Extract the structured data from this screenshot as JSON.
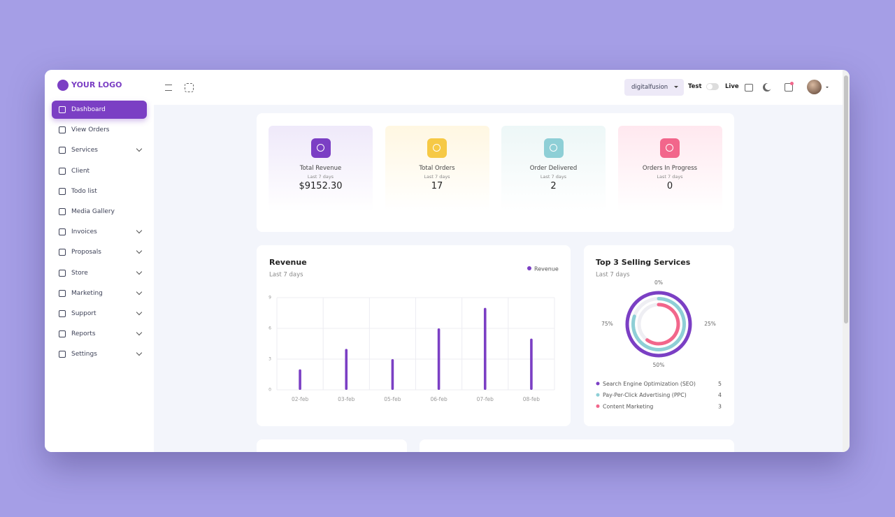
{
  "logo": "YOUR LOGO",
  "nav": [
    {
      "label": "Dashboard",
      "active": true
    },
    {
      "label": "View Orders"
    },
    {
      "label": "Services",
      "submenu": true
    },
    {
      "label": "Client"
    },
    {
      "label": "Todo list"
    },
    {
      "label": "Media Gallery"
    },
    {
      "label": "Invoices",
      "submenu": true
    },
    {
      "label": "Proposals",
      "submenu": true
    },
    {
      "label": "Store",
      "submenu": true
    },
    {
      "label": "Marketing",
      "submenu": true
    },
    {
      "label": "Support",
      "submenu": true
    },
    {
      "label": "Reports",
      "submenu": true
    },
    {
      "label": "Settings",
      "submenu": true
    }
  ],
  "topbar": {
    "workspace": "digitalfusion",
    "mode_test": "Test",
    "mode_live": "Live"
  },
  "stats": [
    {
      "title": "Total Revenue",
      "period": "Last 7 days",
      "value": "$9152.30",
      "color": "#7b3fc4",
      "background": "#efe9fa"
    },
    {
      "title": "Total Orders",
      "period": "Last 7 days",
      "value": "17",
      "color": "#f6c945",
      "background": "#fff7e2"
    },
    {
      "title": "Order Delivered",
      "period": "Last 7 days",
      "value": "2",
      "color": "#8ecfd6",
      "background": "#edf7f7"
    },
    {
      "title": "Orders In Progress",
      "period": "Last 7 days",
      "value": "0",
      "color": "#f2668b",
      "background": "#ffe8ef"
    }
  ],
  "revenue_chart": {
    "type": "bar",
    "title": "Revenue",
    "subtitle": "Last 7 days",
    "categories": [
      "02-feb",
      "03-feb",
      "05-feb",
      "06-feb",
      "07-feb",
      "08-feb"
    ],
    "series": [
      {
        "name": "Revenue",
        "color": "#7b3fc4",
        "values": [
          2,
          4,
          3,
          6,
          8,
          5
        ]
      }
    ],
    "ylim": [
      0,
      9
    ],
    "yticks": [
      0,
      3,
      6,
      9
    ],
    "grid": true
  },
  "services_chart": {
    "type": "radial",
    "title": "Top 3 Selling Services",
    "subtitle": "Last 7 days",
    "angle_ticks": [
      {
        "value": 0,
        "label": "0%"
      },
      {
        "value": 25,
        "label": "25%"
      },
      {
        "value": 50,
        "label": "50%"
      },
      {
        "value": 75,
        "label": "75%"
      }
    ],
    "series": [
      {
        "name": "Search Engine Optimization (SEO)",
        "color": "#7b3fc4",
        "value": 5
      },
      {
        "name": "Pay-Per-Click Advertising (PPC)",
        "color": "#8ecfd6",
        "value": 4
      },
      {
        "name": "Content Marketing",
        "color": "#f2668b",
        "value": 3
      }
    ]
  }
}
